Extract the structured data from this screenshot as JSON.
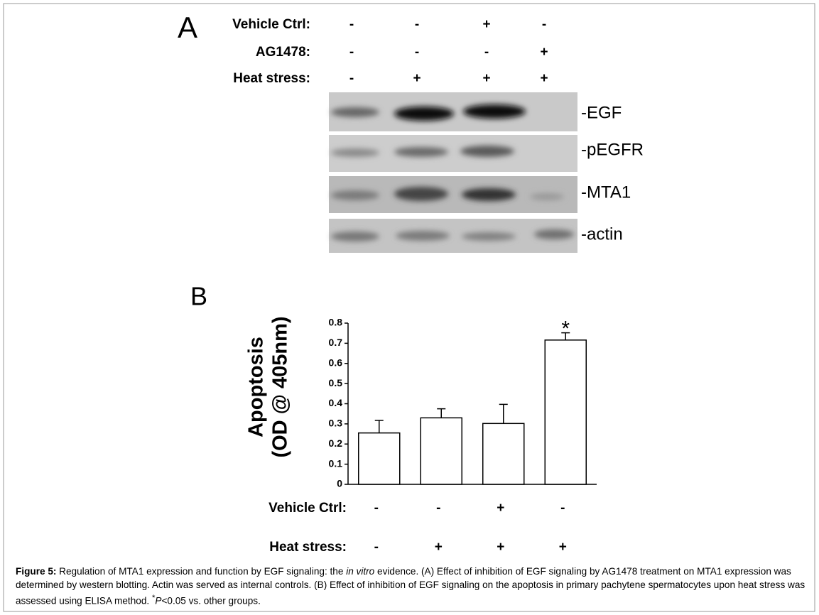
{
  "panel_a": {
    "letter": "A",
    "conditions": [
      {
        "label": "Vehicle Ctrl:",
        "marks": [
          "-",
          "-",
          "+",
          "-"
        ]
      },
      {
        "label": "AG1478:",
        "marks": [
          "-",
          "-",
          "-",
          "+"
        ]
      },
      {
        "label": "Heat stress:",
        "marks": [
          "-",
          "+",
          "+",
          "+"
        ]
      }
    ],
    "blots": [
      "-EGF",
      "-pEGFR",
      "-MTA1",
      "-actin"
    ]
  },
  "chart_data": {
    "type": "bar",
    "letter": "B",
    "y_label": [
      "Apoptosis",
      "(OD @ 405nm)"
    ],
    "values": [
      0.255,
      0.33,
      0.302,
      0.716
    ],
    "errors": [
      0.062,
      0.045,
      0.095,
      0.036
    ],
    "color": "#ffffff",
    "annotation": "*",
    "annotation_index": 3,
    "ylim": [
      0,
      0.8
    ],
    "yticks": [
      0,
      0.1,
      0.2,
      0.3,
      0.4,
      0.5,
      0.6,
      0.7,
      0.8
    ],
    "conditions": [
      {
        "label": "Vehicle Ctrl:",
        "marks": [
          "-",
          "-",
          "+",
          "-"
        ]
      },
      {
        "label": "Heat stress:",
        "marks": [
          "-",
          "+",
          "+",
          "+"
        ]
      }
    ]
  },
  "caption": {
    "label": "Figure 5:",
    "text_1": " Regulation of MTA1 expression and function by EGF signaling: the ",
    "italic": "in vitro",
    "text_2": " evidence. (A) Effect of inhibition of EGF signaling by AG1478 treatment on MTA1 expression was determined by western blotting. Actin was served as internal controls. (B) Effect of inhibition of EGF signaling on the apoptosis in primary pachytene spermatocytes upon heat stress was assessed using ELISA method. ",
    "superscript": "*",
    "italic_2": "P",
    "text_3": "<0.05 vs. other groups."
  }
}
